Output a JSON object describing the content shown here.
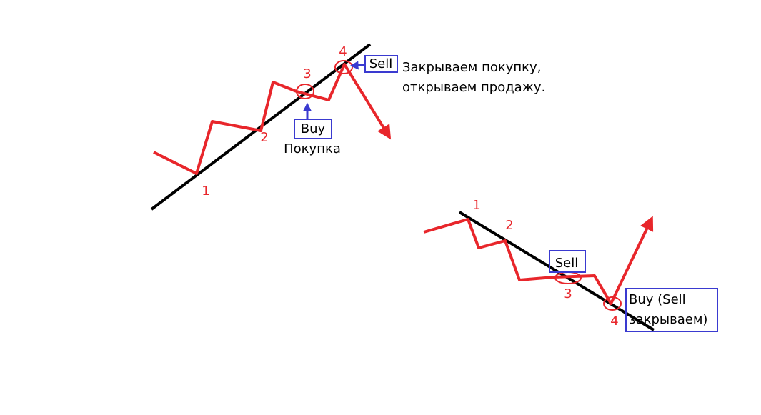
{
  "upper": {
    "points": [
      "1",
      "2",
      "3",
      "4"
    ],
    "buy": "Buy",
    "buy_note": "Покупка",
    "sell": "Sell",
    "sell_note": [
      "Закрываем покупку,",
      "открываем продажу."
    ]
  },
  "lower": {
    "points": [
      "1",
      "2",
      "3",
      "4"
    ],
    "sell": "Sell",
    "buy": [
      "Buy (Sell",
      "закрываем)"
    ]
  }
}
